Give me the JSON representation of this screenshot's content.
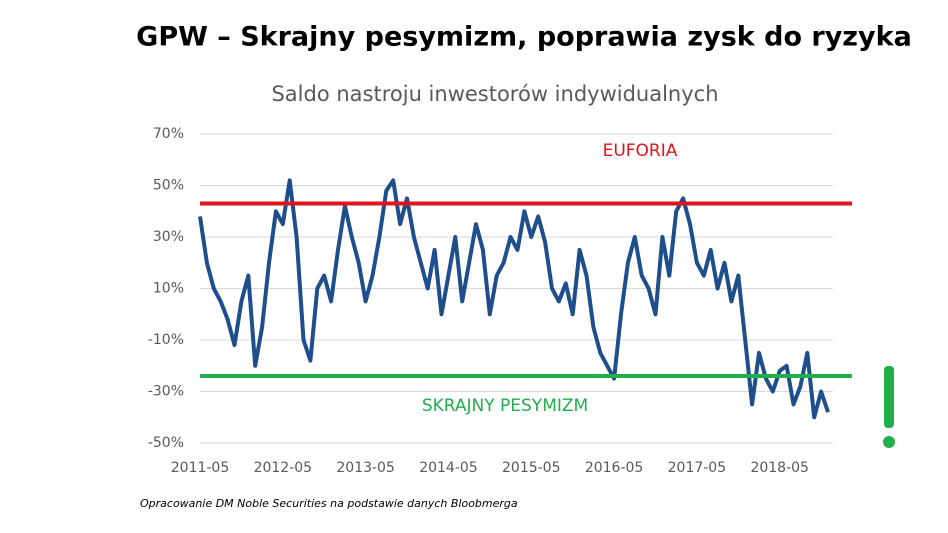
{
  "chart_data": {
    "type": "line",
    "title": "GPW – Skrajny pesymizm, poprawia zysk do ryzyka",
    "subtitle": "Saldo nastroju inwestorów indywidualnych",
    "note": "Opracowanie DM Noble Securities  na podstawie danych Bloobmerga",
    "color": "#1f4e8c",
    "x": [
      "2011-05",
      "2011-06",
      "2011-07",
      "2011-08",
      "2011-09",
      "2011-10",
      "2011-11",
      "2011-12",
      "2012-01",
      "2012-02",
      "2012-03",
      "2012-04",
      "2012-05",
      "2012-06",
      "2012-07",
      "2012-08",
      "2012-09",
      "2012-10",
      "2012-11",
      "2012-12",
      "2013-01",
      "2013-02",
      "2013-03",
      "2013-04",
      "2013-05",
      "2013-06",
      "2013-07",
      "2013-08",
      "2013-09",
      "2013-10",
      "2013-11",
      "2013-12",
      "2014-01",
      "2014-02",
      "2014-03",
      "2014-04",
      "2014-05",
      "2014-06",
      "2014-07",
      "2014-08",
      "2014-09",
      "2014-10",
      "2014-11",
      "2014-12",
      "2015-01",
      "2015-02",
      "2015-03",
      "2015-04",
      "2015-05",
      "2015-06",
      "2015-07",
      "2015-08",
      "2015-09",
      "2015-10",
      "2015-11",
      "2015-12",
      "2016-01",
      "2016-02",
      "2016-03",
      "2016-04",
      "2016-05",
      "2016-06",
      "2016-07",
      "2016-08",
      "2016-09",
      "2016-10",
      "2016-11",
      "2016-12",
      "2017-01",
      "2017-02",
      "2017-03",
      "2017-04",
      "2017-05",
      "2017-06",
      "2017-07",
      "2017-08",
      "2017-09",
      "2017-10",
      "2017-11",
      "2017-12",
      "2018-01",
      "2018-02",
      "2018-03",
      "2018-04",
      "2018-05",
      "2018-06",
      "2018-07",
      "2018-08",
      "2018-09",
      "2018-10",
      "2018-11",
      "2018-12"
    ],
    "values": [
      38,
      20,
      10,
      5,
      -2,
      -12,
      5,
      15,
      -20,
      -5,
      20,
      40,
      35,
      52,
      30,
      -10,
      -18,
      10,
      15,
      5,
      25,
      42,
      30,
      20,
      5,
      15,
      30,
      48,
      52,
      35,
      45,
      30,
      20,
      10,
      25,
      0,
      15,
      30,
      5,
      20,
      35,
      25,
      0,
      15,
      20,
      30,
      25,
      40,
      30,
      38,
      28,
      10,
      5,
      12,
      0,
      25,
      15,
      -5,
      -15,
      -20,
      -25,
      0,
      20,
      30,
      15,
      10,
      0,
      30,
      15,
      40,
      45,
      35,
      20,
      15,
      25,
      10,
      20,
      5,
      15,
      -10,
      -35,
      -15,
      -25,
      -30,
      -22,
      -20,
      -35,
      -28,
      -15,
      -40,
      -30,
      -38
    ],
    "xlim": [
      "2011-05",
      "2018-12"
    ],
    "xticks": [
      "2011-05",
      "2012-05",
      "2013-05",
      "2014-05",
      "2015-05",
      "2016-05",
      "2017-05",
      "2018-05"
    ],
    "ylim": [
      -50,
      70
    ],
    "yticks": [
      {
        "value": -50,
        "label": "-50%"
      },
      {
        "value": -30,
        "label": "-30%"
      },
      {
        "value": -10,
        "label": "-10%"
      },
      {
        "value": 10,
        "label": "10%"
      },
      {
        "value": 30,
        "label": "30%"
      },
      {
        "value": 50,
        "label": "50%"
      },
      {
        "value": 70,
        "label": "70%"
      }
    ],
    "grid": true,
    "reference_lines": [
      {
        "value": 43,
        "color": "#e0141e",
        "label": "EUFORIA"
      },
      {
        "value": -24,
        "color": "#1fae4b",
        "label": "SKRAJNY PESYMIZM"
      }
    ]
  }
}
